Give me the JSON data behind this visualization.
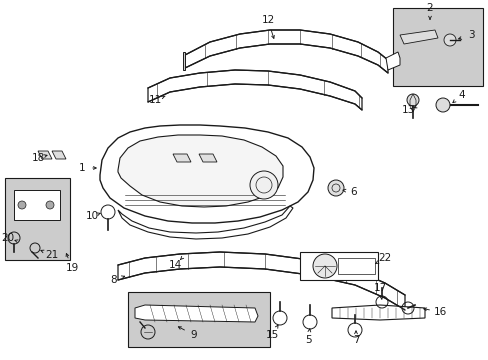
{
  "bg_color": "#ffffff",
  "line_color": "#1a1a1a",
  "box_bg": "#cccccc",
  "lw": 0.8
}
